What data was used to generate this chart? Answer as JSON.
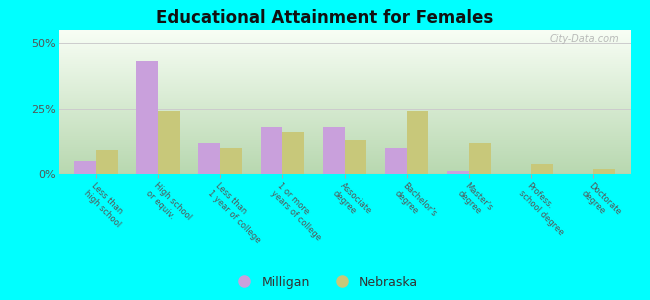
{
  "title": "Educational Attainment for Females",
  "categories": [
    "Less than\nhigh school",
    "High school\nor equiv.",
    "Less than\n1 year of college",
    "1 or more\nyears of college",
    "Associate\ndegree",
    "Bachelor's\ndegree",
    "Master's\ndegree",
    "Profess.\nschool degree",
    "Doctorate\ndegree"
  ],
  "milligan": [
    5,
    43,
    12,
    18,
    18,
    10,
    1,
    0,
    0
  ],
  "nebraska": [
    9,
    24,
    10,
    16,
    13,
    24,
    12,
    4,
    2
  ],
  "milligan_color": "#c9a0dc",
  "nebraska_color": "#c8c87a",
  "background_outer": "#00ffff",
  "yticks": [
    0,
    25,
    50
  ],
  "ylim": [
    0,
    55
  ],
  "bar_width": 0.35,
  "legend_labels": [
    "Milligan",
    "Nebraska"
  ],
  "watermark": "City-Data.com",
  "grad_top": "#b8d8b0",
  "grad_bottom": "#f8fef5"
}
